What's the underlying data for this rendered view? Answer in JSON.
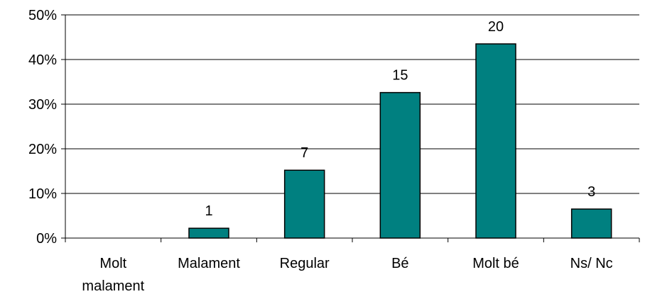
{
  "chart_data": {
    "type": "bar",
    "categories": [
      [
        "Molt",
        "malament"
      ],
      [
        "Malament"
      ],
      [
        "Regular"
      ],
      [
        "Bé"
      ],
      [
        "Molt bé"
      ],
      [
        "Ns/ Nc"
      ]
    ],
    "values": [
      0,
      2.2,
      15.2,
      32.6,
      43.5,
      6.5
    ],
    "data_labels": [
      "",
      "1",
      "7",
      "15",
      "20",
      "3"
    ],
    "ylim": [
      0,
      50
    ],
    "yticks": [
      "0%",
      "10%",
      "20%",
      "30%",
      "40%",
      "50%"
    ],
    "grid": true,
    "legend": "none",
    "bar_color": "#008080",
    "title": "",
    "xlabel": "",
    "ylabel": ""
  }
}
